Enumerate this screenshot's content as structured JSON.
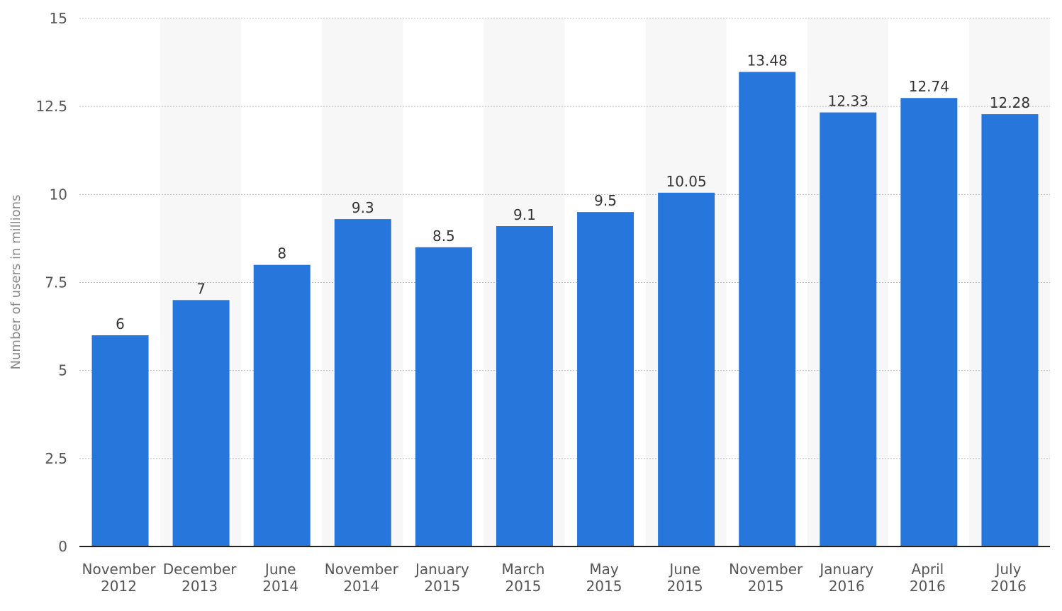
{
  "colors": {
    "bar": "#2676dc",
    "band": "#f7f7f7",
    "grid": "#bdbdbd",
    "axis": "#222222"
  },
  "chart_data": {
    "type": "bar",
    "categories": [
      [
        "November",
        "2012"
      ],
      [
        "December",
        "2013"
      ],
      [
        "June",
        "2014"
      ],
      [
        "November",
        "2014"
      ],
      [
        "January",
        "2015"
      ],
      [
        "March",
        "2015"
      ],
      [
        "May",
        "2015"
      ],
      [
        "June",
        "2015"
      ],
      [
        "November",
        "2015"
      ],
      [
        "January",
        "2016"
      ],
      [
        "April",
        "2016"
      ],
      [
        "July",
        "2016"
      ]
    ],
    "values": [
      6,
      7,
      8,
      9.3,
      8.5,
      9.1,
      9.5,
      10.05,
      13.48,
      12.33,
      12.74,
      12.28
    ],
    "value_labels": [
      "6",
      "7",
      "8",
      "9.3",
      "8.5",
      "9.1",
      "9.5",
      "10.05",
      "13.48",
      "12.33",
      "12.74",
      "12.28"
    ],
    "ylabel": "Number of users in millions",
    "xlabel": "",
    "ylim": [
      0,
      15
    ],
    "yticks": [
      0,
      2.5,
      5,
      7.5,
      10,
      12.5,
      15
    ],
    "ytick_labels": [
      "0",
      "2.5",
      "5",
      "7.5",
      "10",
      "12.5",
      "15"
    ],
    "grid": true,
    "alternating_bands": true
  }
}
